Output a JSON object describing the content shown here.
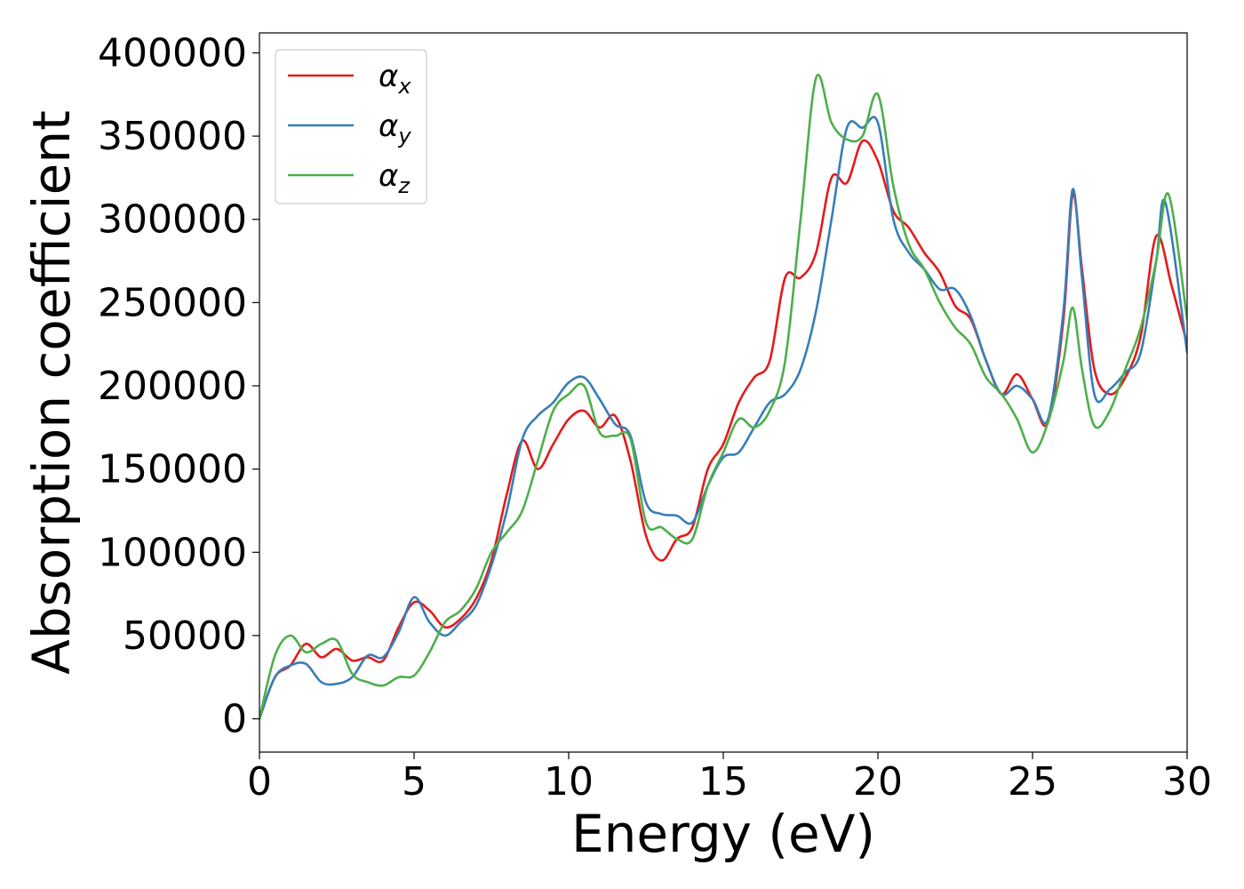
{
  "chart_data": {
    "type": "line",
    "xlabel": "Energy (eV)",
    "ylabel": "Absorption coefficient",
    "xlim": [
      0,
      30
    ],
    "ylim": [
      -20000,
      412000
    ],
    "xticks": [
      0,
      5,
      10,
      15,
      20,
      25,
      30
    ],
    "yticks": [
      0,
      50000,
      100000,
      150000,
      200000,
      250000,
      300000,
      350000,
      400000
    ],
    "grid": false,
    "legend_position": "upper-left",
    "series": [
      {
        "name": "αx",
        "symbol": "α",
        "subscript": "x",
        "color": "#e41a1c",
        "x": [
          0,
          0.5,
          1.0,
          1.5,
          2.0,
          2.5,
          3.0,
          3.5,
          4.0,
          4.5,
          5.0,
          5.5,
          6.0,
          6.5,
          7.0,
          7.5,
          8.0,
          8.5,
          9.0,
          9.5,
          10.0,
          10.5,
          11.0,
          11.5,
          12.0,
          12.5,
          13.0,
          13.5,
          14.0,
          14.5,
          15.0,
          15.5,
          16.0,
          16.5,
          17.0,
          17.5,
          18.0,
          18.5,
          19.0,
          19.5,
          20.0,
          20.5,
          21.0,
          21.5,
          22.0,
          22.5,
          23.0,
          23.5,
          24.0,
          24.5,
          25.0,
          25.5,
          26.0,
          26.3,
          26.6,
          27.0,
          27.5,
          28.0,
          28.5,
          29.0,
          29.5,
          30.0
        ],
        "y": [
          0,
          25000,
          32000,
          45000,
          37000,
          42000,
          35000,
          37000,
          35000,
          55000,
          70000,
          65000,
          55000,
          60000,
          72000,
          95000,
          135000,
          167000,
          150000,
          165000,
          180000,
          185000,
          175000,
          182000,
          155000,
          110000,
          95000,
          108000,
          115000,
          150000,
          165000,
          190000,
          205000,
          215000,
          265000,
          265000,
          280000,
          325000,
          322000,
          347000,
          335000,
          305000,
          295000,
          280000,
          268000,
          248000,
          240000,
          215000,
          195000,
          207000,
          192000,
          178000,
          240000,
          315000,
          270000,
          210000,
          195000,
          205000,
          230000,
          290000,
          260000,
          225000
        ]
      },
      {
        "name": "αy",
        "symbol": "α",
        "subscript": "y",
        "color": "#377eb8",
        "x": [
          0,
          0.5,
          1.0,
          1.5,
          2.0,
          2.5,
          3.0,
          3.5,
          4.0,
          4.5,
          5.0,
          5.5,
          6.0,
          6.5,
          7.0,
          7.5,
          8.0,
          8.5,
          9.0,
          9.5,
          10.0,
          10.5,
          11.0,
          11.5,
          12.0,
          12.5,
          13.0,
          13.5,
          14.0,
          14.5,
          15.0,
          15.5,
          16.0,
          16.5,
          17.0,
          17.5,
          18.0,
          18.5,
          19.0,
          19.5,
          20.0,
          20.5,
          21.0,
          21.5,
          22.0,
          22.5,
          23.0,
          23.5,
          24.0,
          24.5,
          25.0,
          25.5,
          26.0,
          26.3,
          26.6,
          27.0,
          27.5,
          28.0,
          28.5,
          29.0,
          29.3,
          30.0
        ],
        "y": [
          0,
          25000,
          32000,
          33000,
          22000,
          21000,
          25000,
          38000,
          37000,
          52000,
          73000,
          58000,
          50000,
          58000,
          68000,
          92000,
          125000,
          168000,
          182000,
          190000,
          202000,
          205000,
          192000,
          177000,
          170000,
          130000,
          123000,
          122000,
          118000,
          140000,
          157000,
          160000,
          175000,
          190000,
          195000,
          210000,
          245000,
          300000,
          355000,
          355000,
          358000,
          300000,
          280000,
          270000,
          258000,
          258000,
          242000,
          215000,
          195000,
          200000,
          192000,
          180000,
          245000,
          318000,
          265000,
          195000,
          198000,
          208000,
          220000,
          275000,
          310000,
          220000
        ]
      },
      {
        "name": "αz",
        "symbol": "α",
        "subscript": "z",
        "color": "#4daf4a",
        "x": [
          0,
          0.5,
          1.0,
          1.5,
          2.0,
          2.5,
          3.0,
          3.5,
          4.0,
          4.5,
          5.0,
          5.5,
          6.0,
          6.5,
          7.0,
          7.5,
          8.0,
          8.5,
          9.0,
          9.5,
          10.0,
          10.5,
          11.0,
          11.5,
          12.0,
          12.5,
          13.0,
          13.5,
          14.0,
          14.5,
          15.0,
          15.5,
          16.0,
          16.5,
          17.0,
          17.5,
          18.0,
          18.5,
          19.0,
          19.5,
          20.0,
          20.5,
          21.0,
          21.5,
          22.0,
          22.5,
          23.0,
          23.5,
          24.0,
          24.5,
          25.0,
          25.5,
          26.0,
          26.3,
          26.6,
          27.0,
          27.5,
          28.0,
          28.5,
          29.0,
          29.4,
          30.0
        ],
        "y": [
          0,
          38000,
          50000,
          40000,
          45000,
          47000,
          27000,
          22000,
          20000,
          25000,
          26000,
          40000,
          58000,
          65000,
          78000,
          100000,
          112000,
          125000,
          155000,
          185000,
          195000,
          200000,
          172000,
          170000,
          168000,
          118000,
          115000,
          108000,
          108000,
          140000,
          160000,
          180000,
          175000,
          185000,
          215000,
          300000,
          385000,
          358000,
          348000,
          350000,
          375000,
          320000,
          285000,
          270000,
          250000,
          235000,
          225000,
          205000,
          195000,
          180000,
          160000,
          178000,
          215000,
          247000,
          210000,
          176000,
          185000,
          210000,
          235000,
          275000,
          315000,
          240000
        ]
      }
    ]
  }
}
